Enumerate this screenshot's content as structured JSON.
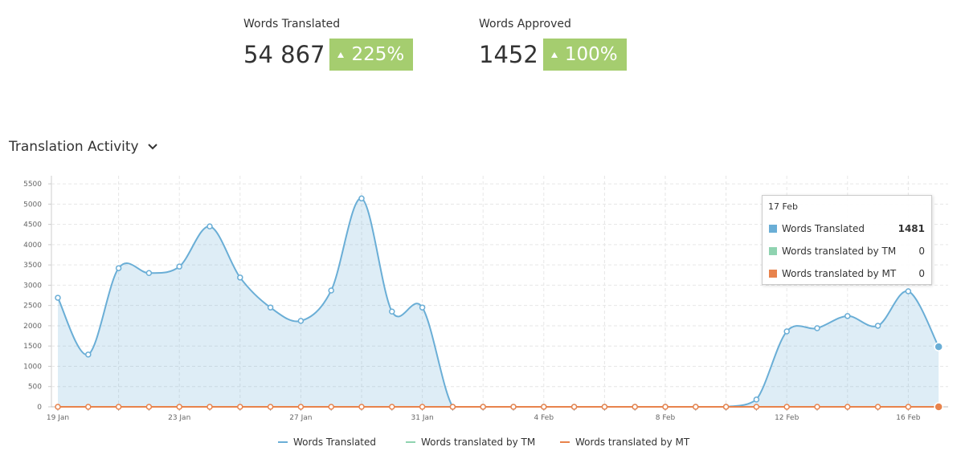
{
  "stats": [
    {
      "label": "Words Translated",
      "value": "54 867",
      "change": "225%"
    },
    {
      "label": "Words Approved",
      "value": "1452",
      "change": "100%"
    }
  ],
  "chart_data": {
    "type": "area",
    "title": "Translation Activity",
    "categories": [
      "19 Jan",
      null,
      null,
      null,
      "23 Jan",
      null,
      null,
      null,
      "27 Jan",
      null,
      null,
      null,
      "31 Jan",
      null,
      null,
      null,
      "4 Feb",
      null,
      null,
      null,
      "8 Feb",
      null,
      null,
      null,
      "12 Feb",
      null,
      null,
      null,
      "16 Feb",
      null
    ],
    "series": [
      {
        "name": "Words Translated",
        "color": "#6aaed6",
        "values": [
          2690,
          1290,
          3420,
          3300,
          3460,
          4450,
          3190,
          2450,
          2120,
          2870,
          5140,
          2350,
          2450,
          0,
          0,
          0,
          0,
          0,
          0,
          0,
          0,
          0,
          0,
          180,
          1860,
          1940,
          2240,
          2000,
          2850,
          1481
        ]
      },
      {
        "name": "Words translated by TM",
        "color": "#8fd3b0",
        "values": [
          0,
          0,
          0,
          0,
          0,
          0,
          0,
          0,
          0,
          0,
          0,
          0,
          0,
          0,
          0,
          0,
          0,
          0,
          0,
          0,
          0,
          0,
          0,
          0,
          0,
          0,
          0,
          0,
          0,
          0
        ]
      },
      {
        "name": "Words translated by MT",
        "color": "#e8834c",
        "values": [
          0,
          0,
          0,
          0,
          0,
          0,
          0,
          0,
          0,
          0,
          0,
          0,
          0,
          0,
          0,
          0,
          0,
          0,
          0,
          0,
          0,
          0,
          0,
          0,
          0,
          0,
          0,
          0,
          0,
          0
        ]
      }
    ],
    "ylim": [
      0,
      5700
    ],
    "yticks": [
      0,
      500,
      1000,
      1500,
      2000,
      2500,
      3000,
      3500,
      4000,
      4500,
      5000,
      5500
    ],
    "grid": true,
    "tooltip": {
      "title": "17 Feb"
    }
  }
}
